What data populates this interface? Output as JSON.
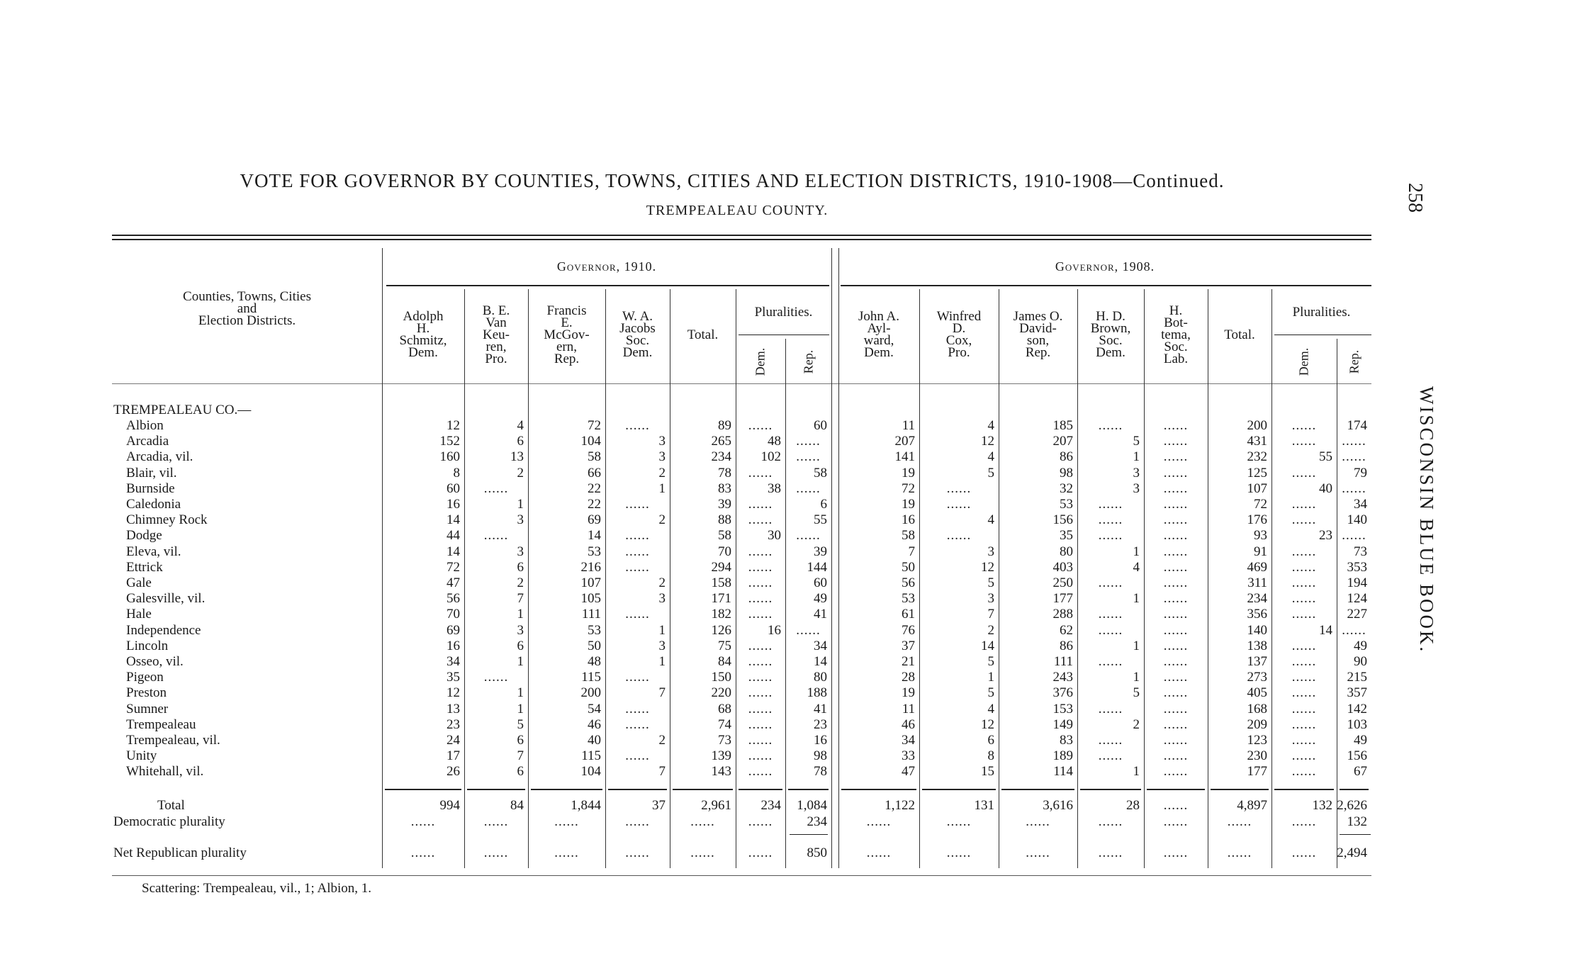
{
  "page": {
    "title": "VOTE FOR GOVERNOR BY COUNTIES, TOWNS, CITIES AND ELECTION DISTRICTS, 1910-1908—Continued.",
    "subtitle": "TREMPEALEAU COUNTY.",
    "page_number": "258",
    "running_head": "WISCONSIN BLUE BOOK."
  },
  "table": {
    "label_header": "Counties, Towns, Cities\nand\nElection Districts.",
    "groups": [
      "Governor, 1910.",
      "Governor, 1908."
    ],
    "pluralities_label": "Pluralities.",
    "dem_label": "Dem.",
    "rep_label": "Rep.",
    "columns_1910": [
      "Adolph\nH.\nSchmitz,\nDem.",
      "B. E.\nVan\nKeu-\nren,\nPro.",
      "Francis\nE.\nMcGov-\nern,\nRep.",
      "W. A.\nJacobs\nSoc.\nDem.",
      "Total."
    ],
    "columns_1908": [
      "John A.\nAyl-\nward,\nDem.",
      "Winfred\nD.\nCox,\nPro.",
      "James O.\nDavid-\nson,\nRep.",
      "H. D.\nBrown,\nSoc.\nDem.",
      "H.\nBot-\ntema,\nSoc.\nLab.",
      "Total."
    ],
    "county_label": "TREMPEALEAU CO.—",
    "empty_mark": "......",
    "rows": [
      {
        "name": "Albion",
        "v": [
          "12",
          "4",
          "72",
          "",
          "89",
          "",
          "60",
          "11",
          "4",
          "185",
          "",
          "",
          "200",
          "",
          "174"
        ]
      },
      {
        "name": "Arcadia",
        "v": [
          "152",
          "6",
          "104",
          "3",
          "265",
          "48",
          "",
          "207",
          "12",
          "207",
          "5",
          "",
          "431",
          "",
          ""
        ]
      },
      {
        "name": "Arcadia, vil.",
        "v": [
          "160",
          "13",
          "58",
          "3",
          "234",
          "102",
          "",
          "141",
          "4",
          "86",
          "1",
          "",
          "232",
          "55",
          ""
        ]
      },
      {
        "name": "Blair, vil.",
        "v": [
          "8",
          "2",
          "66",
          "2",
          "78",
          "",
          "58",
          "19",
          "5",
          "98",
          "3",
          "",
          "125",
          "",
          "79"
        ]
      },
      {
        "name": "Burnside",
        "v": [
          "60",
          "",
          "22",
          "1",
          "83",
          "38",
          "",
          "72",
          "",
          "32",
          "3",
          "",
          "107",
          "40",
          ""
        ]
      },
      {
        "name": "Caledonia",
        "v": [
          "16",
          "1",
          "22",
          "",
          "39",
          "",
          "6",
          "19",
          "",
          "53",
          "",
          "",
          "72",
          "",
          "34"
        ]
      },
      {
        "name": "Chimney Rock",
        "v": [
          "14",
          "3",
          "69",
          "2",
          "88",
          "",
          "55",
          "16",
          "4",
          "156",
          "",
          "",
          "176",
          "",
          "140"
        ]
      },
      {
        "name": "Dodge",
        "v": [
          "44",
          "",
          "14",
          "",
          "58",
          "30",
          "",
          "58",
          "",
          "35",
          "",
          "",
          "93",
          "23",
          ""
        ]
      },
      {
        "name": "Eleva, vil.",
        "v": [
          "14",
          "3",
          "53",
          "",
          "70",
          "",
          "39",
          "7",
          "3",
          "80",
          "1",
          "",
          "91",
          "",
          "73"
        ]
      },
      {
        "name": "Ettrick",
        "v": [
          "72",
          "6",
          "216",
          "",
          "294",
          "",
          "144",
          "50",
          "12",
          "403",
          "4",
          "",
          "469",
          "",
          "353"
        ]
      },
      {
        "name": "Gale",
        "v": [
          "47",
          "2",
          "107",
          "2",
          "158",
          "",
          "60",
          "56",
          "5",
          "250",
          "",
          "",
          "311",
          "",
          "194"
        ]
      },
      {
        "name": "Galesville, vil.",
        "v": [
          "56",
          "7",
          "105",
          "3",
          "171",
          "",
          "49",
          "53",
          "3",
          "177",
          "1",
          "",
          "234",
          "",
          "124"
        ]
      },
      {
        "name": "Hale",
        "v": [
          "70",
          "1",
          "111",
          "",
          "182",
          "",
          "41",
          "61",
          "7",
          "288",
          "",
          "",
          "356",
          "",
          "227"
        ]
      },
      {
        "name": "Independence",
        "v": [
          "69",
          "3",
          "53",
          "1",
          "126",
          "16",
          "",
          "76",
          "2",
          "62",
          "",
          "",
          "140",
          "14",
          ""
        ]
      },
      {
        "name": "Lincoln",
        "v": [
          "16",
          "6",
          "50",
          "3",
          "75",
          "",
          "34",
          "37",
          "14",
          "86",
          "1",
          "",
          "138",
          "",
          "49"
        ]
      },
      {
        "name": "Osseo, vil.",
        "v": [
          "34",
          "1",
          "48",
          "1",
          "84",
          "",
          "14",
          "21",
          "5",
          "111",
          "",
          "",
          "137",
          "",
          "90"
        ]
      },
      {
        "name": "Pigeon",
        "v": [
          "35",
          "",
          "115",
          "",
          "150",
          "",
          "80",
          "28",
          "1",
          "243",
          "1",
          "",
          "273",
          "",
          "215"
        ]
      },
      {
        "name": "Preston",
        "v": [
          "12",
          "1",
          "200",
          "7",
          "220",
          "",
          "188",
          "19",
          "5",
          "376",
          "5",
          "",
          "405",
          "",
          "357"
        ]
      },
      {
        "name": "Sumner",
        "v": [
          "13",
          "1",
          "54",
          "",
          "68",
          "",
          "41",
          "11",
          "4",
          "153",
          "",
          "",
          "168",
          "",
          "142"
        ]
      },
      {
        "name": "Trempealeau",
        "v": [
          "23",
          "5",
          "46",
          "",
          "74",
          "",
          "23",
          "46",
          "12",
          "149",
          "2",
          "",
          "209",
          "",
          "103"
        ]
      },
      {
        "name": "Trempealeau, vil.",
        "v": [
          "24",
          "6",
          "40",
          "2",
          "73",
          "",
          "16",
          "34",
          "6",
          "83",
          "",
          "",
          "123",
          "",
          "49"
        ]
      },
      {
        "name": "Unity",
        "v": [
          "17",
          "7",
          "115",
          "",
          "139",
          "",
          "98",
          "33",
          "8",
          "189",
          "",
          "",
          "230",
          "",
          "156"
        ]
      },
      {
        "name": "Whitehall, vil.",
        "v": [
          "26",
          "6",
          "104",
          "7",
          "143",
          "",
          "78",
          "47",
          "15",
          "114",
          "1",
          "",
          "177",
          "",
          "67"
        ]
      }
    ],
    "total": {
      "name": "Total",
      "v": [
        "994",
        "84",
        "1,844",
        "37",
        "2,961",
        "234",
        "1,084",
        "1,122",
        "131",
        "3,616",
        "28",
        "",
        "4,897",
        "132",
        "2,626"
      ]
    },
    "dem_plurality": {
      "name": "Democratic plurality",
      "v": [
        "",
        "",
        "",
        "",
        "",
        "",
        "234",
        "",
        "",
        "",
        "",
        "",
        "",
        "",
        "132"
      ]
    },
    "net_rep_plurality": {
      "name": "Net Republican plurality",
      "v": [
        "",
        "",
        "",
        "",
        "",
        "",
        "850",
        "",
        "",
        "",
        "",
        "",
        "",
        "",
        "2,494"
      ]
    }
  },
  "footnote": "Scattering: Trempealeau, vil., 1; Albion, 1."
}
